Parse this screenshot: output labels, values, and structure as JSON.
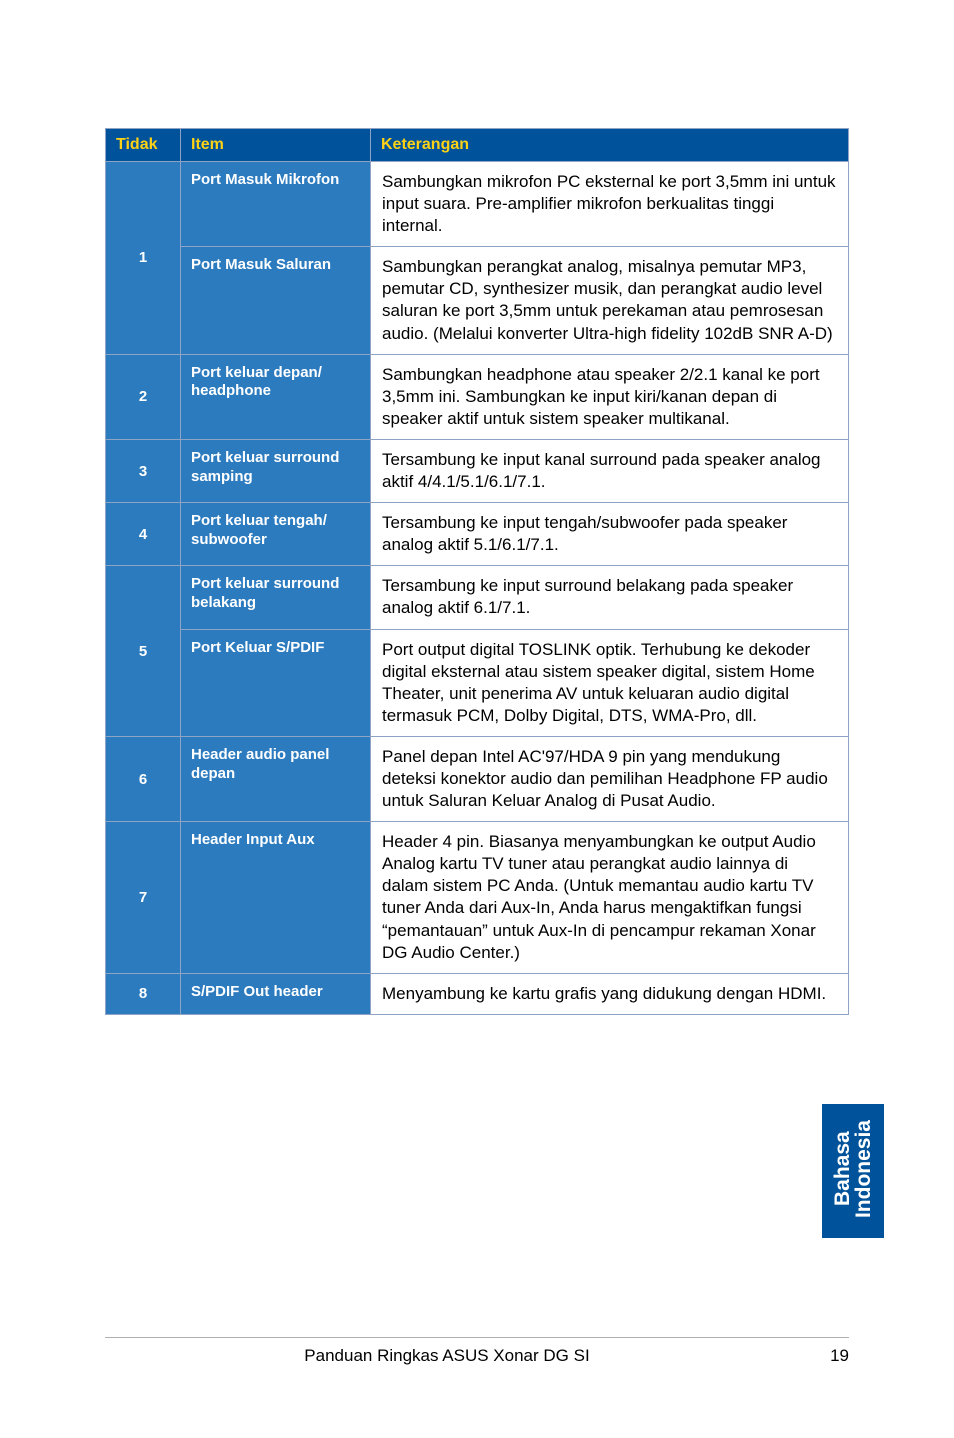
{
  "headers": {
    "col1": "Tidak",
    "col2": "Item",
    "col3": "Keterangan"
  },
  "rows": [
    {
      "num": "1",
      "rowspan_num": 2,
      "subrows": [
        {
          "item": "Port Masuk Mikrofon",
          "desc": "Sambungkan mikrofon PC eksternal ke port 3,5mm ini untuk input suara. Pre-amplifier mikrofon berkualitas tinggi internal."
        },
        {
          "item": "Port Masuk Saluran",
          "desc": "Sambungkan perangkat analog, misalnya pemutar MP3, pemutar CD, synthesizer musik, dan perangkat audio level saluran ke port 3,5mm untuk perekaman atau pemrosesan audio. (Melalui konverter Ultra-high fidelity 102dB SNR A-D)"
        }
      ]
    },
    {
      "num": "2",
      "rowspan_num": 1,
      "subrows": [
        {
          "item": "Port keluar depan/ headphone",
          "desc": "Sambungkan headphone atau speaker 2/2.1 kanal ke port 3,5mm ini. Sambungkan ke input kiri/kanan depan di speaker aktif untuk sistem speaker multikanal."
        }
      ]
    },
    {
      "num": "3",
      "rowspan_num": 1,
      "subrows": [
        {
          "item": "Port keluar surround samping",
          "desc": "Tersambung ke input kanal surround pada speaker analog aktif 4/4.1/5.1/6.1/7.1."
        }
      ]
    },
    {
      "num": "4",
      "rowspan_num": 1,
      "subrows": [
        {
          "item": "Port keluar tengah/ subwoofer",
          "desc": "Tersambung ke input tengah/subwoofer pada speaker analog aktif 5.1/6.1/7.1."
        }
      ]
    },
    {
      "num": "5",
      "rowspan_num": 2,
      "subrows": [
        {
          "item": "Port keluar surround belakang",
          "desc": "Tersambung ke input surround belakang pada speaker analog aktif 6.1/7.1."
        },
        {
          "item": "Port Keluar S/PDIF",
          "desc": "Port output digital TOSLINK optik. Terhubung ke dekoder digital eksternal atau sistem speaker digital, sistem Home Theater, unit penerima AV untuk keluaran audio digital termasuk PCM, Dolby Digital, DTS, WMA-Pro, dll."
        }
      ]
    },
    {
      "num": "6",
      "rowspan_num": 1,
      "subrows": [
        {
          "item": "Header audio panel depan",
          "desc": "Panel depan Intel AC'97/HDA 9 pin yang mendukung deteksi konektor audio dan pemilihan Headphone FP audio untuk Saluran Keluar Analog di Pusat Audio."
        }
      ]
    },
    {
      "num": "7",
      "rowspan_num": 1,
      "subrows": [
        {
          "item": "Header Input Aux",
          "desc": "Header 4 pin. Biasanya menyambungkan ke output Audio Analog kartu TV tuner atau perangkat audio lainnya di dalam sistem PC Anda. (Untuk memantau audio kartu TV tuner Anda dari Aux-In, Anda harus mengaktifkan fungsi “pemantauan” untuk Aux-In di pencampur rekaman Xonar DG Audio Center.)"
        }
      ]
    },
    {
      "num": "8",
      "rowspan_num": 1,
      "subrows": [
        {
          "item": "S/PDIF Out header",
          "desc": "Menyambung ke kartu grafis yang didukung dengan HDMI."
        }
      ]
    }
  ],
  "sideTab": {
    "line1": "Bahasa",
    "line2": "Indonesia"
  },
  "footer": {
    "title": "Panduan Ringkas ASUS Xonar DG SI",
    "page": "19"
  },
  "colors": {
    "header_bg": "#00539a",
    "header_fg": "#fcd116",
    "cell_blue": "#2c7bbf",
    "cell_blue_alt": "#3282c5",
    "border": "#8fa4c4"
  }
}
